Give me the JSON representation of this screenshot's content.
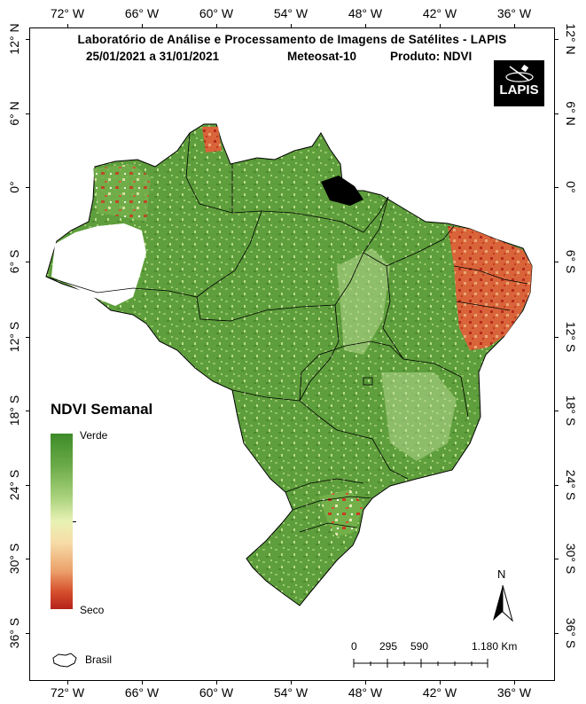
{
  "header": {
    "title": "Laboratório de Análise e Processamento de Imagens de Satélites - LAPIS",
    "date_range": "25/01/2021  a  31/01/2021",
    "satellite": "Meteosat-10",
    "product": "Produto: NDVI"
  },
  "logo": {
    "text": "LAPIS"
  },
  "graticule": {
    "longitudes": [
      "72° W",
      "66° W",
      "60° W",
      "54° W",
      "48° W",
      "42° W",
      "36° W"
    ],
    "latitudes": [
      "12° N",
      "6° N",
      "0°",
      "6° S",
      "12° S",
      "18° S",
      "24° S",
      "30° S",
      "36° S"
    ]
  },
  "legend": {
    "title": "NDVI Semanal",
    "high_label": "Verde",
    "low_label": "Seco",
    "boundary_label": "Brasil"
  },
  "scale_bar": {
    "ticks": [
      "0",
      "295",
      "590",
      "1.180 Km"
    ]
  },
  "north_arrow": {
    "label": "N"
  },
  "colors": {
    "high": "#3d8b2a",
    "mid": "#e8f2b4",
    "low": "#b5221a"
  }
}
